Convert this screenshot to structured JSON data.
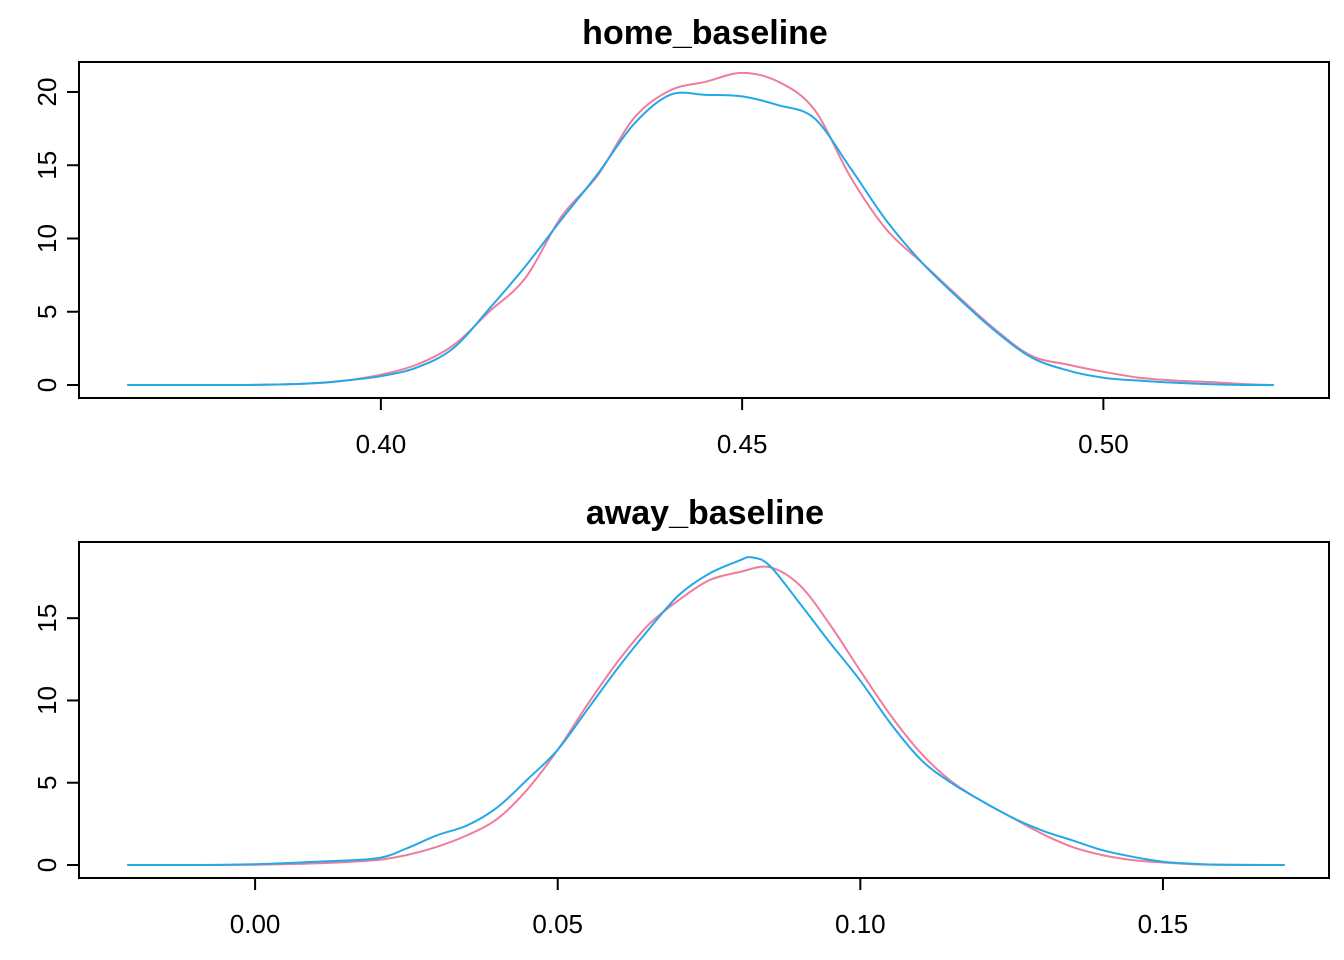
{
  "chart_data": [
    {
      "type": "line",
      "title": "home_baseline",
      "xlabel": "",
      "ylabel": "",
      "xlim": [
        0.365,
        0.525
      ],
      "ylim": [
        0,
        21.5
      ],
      "xticks": [
        0.4,
        0.45,
        0.5
      ],
      "xtick_labels": [
        "0.40",
        "0.45",
        "0.50"
      ],
      "yticks": [
        0,
        5,
        10,
        15,
        20
      ],
      "ytick_labels": [
        "0",
        "5",
        "10",
        "15",
        "20"
      ],
      "legend": "none",
      "grid": false,
      "series": [
        {
          "color": "#f07c9c",
          "x": [
            0.365,
            0.38,
            0.39,
            0.395,
            0.4,
            0.405,
            0.41,
            0.415,
            0.42,
            0.425,
            0.43,
            0.435,
            0.44,
            0.445,
            0.45,
            0.455,
            0.46,
            0.465,
            0.47,
            0.475,
            0.48,
            0.485,
            0.49,
            0.495,
            0.5,
            0.505,
            0.51,
            0.515,
            0.52,
            0.5235
          ],
          "y": [
            0,
            0,
            0.1,
            0.3,
            0.7,
            1.4,
            2.7,
            5.0,
            7.3,
            11.5,
            14.3,
            18.2,
            20.1,
            20.7,
            21.3,
            20.7,
            18.8,
            14.2,
            10.6,
            8.3,
            6.0,
            3.8,
            2.0,
            1.4,
            0.9,
            0.5,
            0.3,
            0.2,
            0.05,
            0
          ]
        },
        {
          "color": "#23a8e8",
          "x": [
            0.365,
            0.38,
            0.39,
            0.395,
            0.4,
            0.405,
            0.41,
            0.415,
            0.42,
            0.425,
            0.43,
            0.435,
            0.44,
            0.445,
            0.45,
            0.455,
            0.46,
            0.465,
            0.47,
            0.475,
            0.48,
            0.485,
            0.49,
            0.495,
            0.5,
            0.505,
            0.51,
            0.515,
            0.52,
            0.5235
          ],
          "y": [
            0,
            0,
            0.1,
            0.3,
            0.6,
            1.2,
            2.5,
            5.2,
            8.1,
            11.3,
            14.4,
            17.8,
            19.8,
            19.8,
            19.7,
            19.1,
            18.2,
            14.8,
            11.2,
            8.3,
            5.9,
            3.7,
            1.9,
            1.0,
            0.5,
            0.3,
            0.15,
            0.05,
            0,
            0
          ]
        }
      ]
    },
    {
      "type": "line",
      "title": "away_baseline",
      "xlabel": "",
      "ylabel": "",
      "xlim": [
        -0.021,
        0.17
      ],
      "ylim": [
        0,
        18.9
      ],
      "xticks": [
        0.0,
        0.05,
        0.1,
        0.15
      ],
      "xtick_labels": [
        "0.00",
        "0.05",
        "0.10",
        "0.15"
      ],
      "yticks": [
        0,
        5,
        10,
        15
      ],
      "ytick_labels": [
        "0",
        "5",
        "10",
        "15"
      ],
      "legend": "none",
      "grid": false,
      "series": [
        {
          "color": "#f07c9c",
          "x": [
            -0.021,
            -0.01,
            0.0,
            0.01,
            0.02,
            0.025,
            0.03,
            0.035,
            0.04,
            0.045,
            0.05,
            0.055,
            0.06,
            0.065,
            0.07,
            0.075,
            0.08,
            0.085,
            0.09,
            0.095,
            0.1,
            0.105,
            0.11,
            0.115,
            0.12,
            0.125,
            0.13,
            0.135,
            0.14,
            0.145,
            0.15,
            0.155,
            0.16,
            0.17
          ],
          "y": [
            0,
            0,
            0.02,
            0.1,
            0.3,
            0.6,
            1.1,
            1.8,
            2.8,
            4.6,
            7.0,
            9.8,
            12.4,
            14.6,
            16.1,
            17.3,
            17.8,
            18.1,
            17.0,
            14.6,
            11.8,
            9.1,
            6.8,
            5.1,
            3.9,
            2.9,
            1.9,
            1.1,
            0.6,
            0.3,
            0.15,
            0.05,
            0.01,
            0
          ]
        },
        {
          "color": "#23a8e8",
          "x": [
            -0.021,
            -0.01,
            0.0,
            0.01,
            0.02,
            0.025,
            0.03,
            0.035,
            0.04,
            0.045,
            0.05,
            0.055,
            0.06,
            0.065,
            0.07,
            0.075,
            0.08,
            0.082,
            0.085,
            0.09,
            0.095,
            0.1,
            0.105,
            0.11,
            0.115,
            0.12,
            0.125,
            0.13,
            0.135,
            0.14,
            0.145,
            0.15,
            0.155,
            0.16,
            0.17
          ],
          "y": [
            0,
            0,
            0.05,
            0.2,
            0.4,
            1.0,
            1.8,
            2.4,
            3.5,
            5.2,
            7.0,
            9.5,
            12.0,
            14.3,
            16.4,
            17.7,
            18.5,
            18.7,
            18.2,
            15.9,
            13.5,
            11.2,
            8.6,
            6.4,
            5.0,
            3.9,
            2.9,
            2.1,
            1.5,
            0.9,
            0.5,
            0.2,
            0.08,
            0.02,
            0
          ]
        }
      ]
    }
  ]
}
